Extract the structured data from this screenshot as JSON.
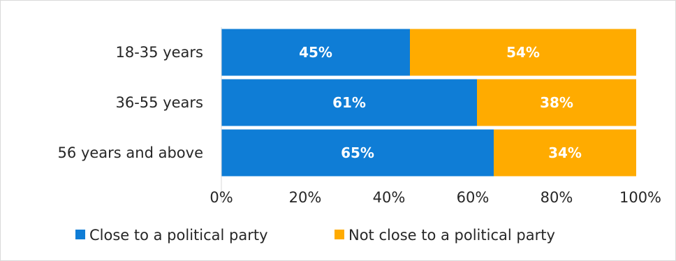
{
  "chart_data": {
    "type": "bar",
    "orientation": "horizontal",
    "stacked": true,
    "categories": [
      "18-35 years",
      "36-55 years",
      "56 years and above"
    ],
    "series": [
      {
        "name": "Close to a political party",
        "values": [
          45,
          61,
          65
        ],
        "labels": [
          "45%",
          "61%",
          "65%"
        ],
        "color": "#0f7dd6"
      },
      {
        "name": "Not close to a political party",
        "values": [
          54,
          38,
          34
        ],
        "labels": [
          "54%",
          "38%",
          "34%"
        ],
        "color": "#ffab00"
      }
    ],
    "xlim": [
      0,
      100
    ],
    "xticks": [
      0,
      20,
      40,
      60,
      80,
      100
    ],
    "xtick_labels": [
      "0%",
      "20%",
      "40%",
      "60%",
      "80%",
      "100%"
    ],
    "grid": false,
    "legend_position": "bottom"
  }
}
